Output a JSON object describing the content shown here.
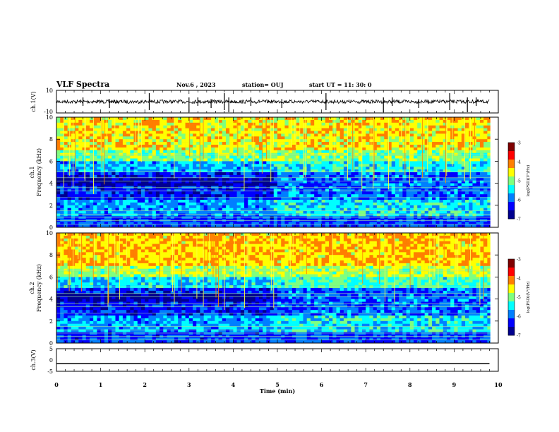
{
  "header": {
    "title": "VLF Spectra",
    "date": "Nov.6  , 2023",
    "station": "station= OUJ",
    "start": "start  UT =   11: 30: 0"
  },
  "colors": {
    "colormap": [
      "#00008f",
      "#0000ff",
      "#007fff",
      "#00ffff",
      "#7fff7f",
      "#ffff00",
      "#ff7f00",
      "#ff0000",
      "#7f0000"
    ],
    "axis": "#000000",
    "background": "#ffffff"
  },
  "chart_data": [
    {
      "type": "line",
      "panel": "ch1-waveform",
      "ylabel": "ch.1(V)",
      "ylim": [
        -10,
        10
      ],
      "y_ticks": [
        "10",
        "-10"
      ],
      "x": [
        0,
        10
      ],
      "series": [
        {
          "values": [
            0,
            0
          ]
        }
      ],
      "spikes_at_min": [
        0.6,
        1.2,
        2.1,
        3.0,
        3.2,
        3.5,
        3.8,
        3.9,
        4.4,
        5.1,
        6.1,
        7.4,
        7.6,
        8.2,
        8.9,
        9.3,
        9.5
      ]
    },
    {
      "type": "heatmap",
      "panel": "ch1-spectrogram",
      "ylabel": "ch.1\nFrequency  (kHz)",
      "ylim": [
        0,
        10
      ],
      "y_ticks": [
        "0",
        "2",
        "4",
        "6",
        "8",
        "10"
      ],
      "xlim": [
        0,
        10
      ],
      "colorbar": {
        "label": "log(PSD)(V²/Hz)",
        "range": [
          -7,
          -3
        ],
        "ticks": [
          "-3",
          "-4",
          "-5",
          "-6",
          "-7"
        ]
      }
    },
    {
      "type": "heatmap",
      "panel": "ch2-spectrogram",
      "ylabel": "ch.2\nFrequency  (kHz)",
      "ylim": [
        0,
        10
      ],
      "y_ticks": [
        "0",
        "2",
        "4",
        "6",
        "8",
        "10"
      ],
      "xlim": [
        0,
        10
      ],
      "colorbar": {
        "label": "log(PSD)(V²/Hz)",
        "range": [
          -7,
          -3
        ],
        "ticks": [
          "-3",
          "-4",
          "-5",
          "-6",
          "-7"
        ]
      }
    },
    {
      "type": "line",
      "panel": "ch3-waveform",
      "ylabel": "ch.3(V)",
      "ylim": [
        -5,
        5
      ],
      "y_ticks": [
        "5",
        "0",
        "-5"
      ],
      "x": [
        0,
        10
      ],
      "series": [
        {
          "values": [
            -1.6,
            -1.6
          ]
        }
      ]
    }
  ],
  "x_axis": {
    "label": "Time  (min)",
    "ticks": [
      "0",
      "1",
      "2",
      "3",
      "4",
      "5",
      "6",
      "7",
      "8",
      "9",
      "10"
    ],
    "range": [
      0,
      10
    ]
  }
}
